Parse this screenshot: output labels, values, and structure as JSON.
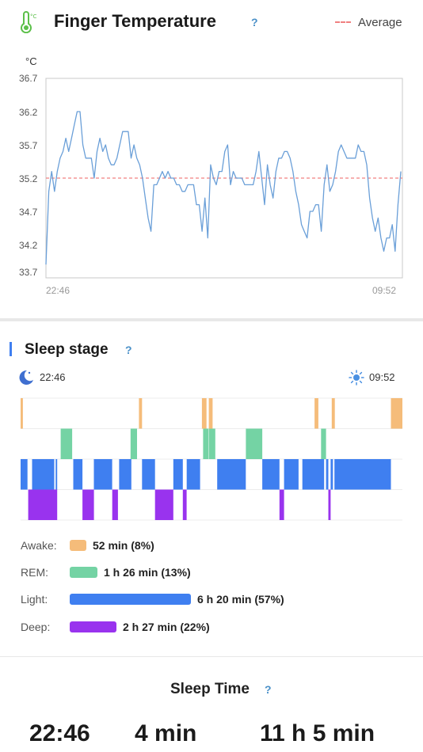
{
  "temperature": {
    "title": "Finger Temperature",
    "help": "?",
    "legend_label": "Average",
    "unit": "°C",
    "y_ticks": [
      "36.7",
      "36.2",
      "35.7",
      "35.2",
      "34.7",
      "34.2",
      "33.7"
    ],
    "start_label": "22:46",
    "end_label": "09:52",
    "colors": {
      "line": "#6a9fd8",
      "average": "#f08080"
    }
  },
  "chart_data": {
    "type": "line",
    "title": "",
    "xlabel": "",
    "ylabel": "°C",
    "ylim": [
      33.7,
      36.7
    ],
    "average": 35.2,
    "x_range": [
      "22:46",
      "09:52"
    ],
    "series": [
      {
        "values": [
          33.9,
          35.0,
          35.3,
          35.0,
          35.3,
          35.5,
          35.6,
          35.8,
          35.6,
          35.8,
          36.0,
          36.2,
          36.2,
          35.7,
          35.5,
          35.5,
          35.5,
          35.2,
          35.6,
          35.8,
          35.6,
          35.7,
          35.5,
          35.4,
          35.4,
          35.5,
          35.7,
          35.9,
          35.9,
          35.9,
          35.5,
          35.7,
          35.5,
          35.4,
          35.2,
          34.9,
          34.6,
          34.4,
          35.1,
          35.1,
          35.2,
          35.3,
          35.2,
          35.3,
          35.2,
          35.2,
          35.1,
          35.1,
          35.0,
          35.0,
          35.1,
          35.1,
          35.1,
          34.8,
          34.8,
          34.4,
          34.9,
          34.3,
          35.4,
          35.2,
          35.1,
          35.3,
          35.3,
          35.6,
          35.7,
          35.1,
          35.3,
          35.2,
          35.2,
          35.2,
          35.1,
          35.1,
          35.1,
          35.1,
          35.3,
          35.6,
          35.2,
          34.8,
          35.4,
          35.1,
          34.9,
          35.3,
          35.5,
          35.5,
          35.6,
          35.6,
          35.5,
          35.3,
          35.0,
          34.8,
          34.5,
          34.4,
          34.3,
          34.7,
          34.7,
          34.8,
          34.8,
          34.4,
          35.1,
          35.4,
          35.0,
          35.1,
          35.3,
          35.6,
          35.7,
          35.6,
          35.5,
          35.5,
          35.5,
          35.5,
          35.7,
          35.6,
          35.6,
          35.4,
          34.9,
          34.6,
          34.4,
          34.6,
          34.3,
          34.1,
          34.3,
          34.3,
          34.5,
          34.1,
          34.8,
          35.3
        ]
      }
    ]
  },
  "sleep_stage": {
    "title": "Sleep stage",
    "help": "?",
    "start_time": "22:46",
    "end_time": "09:52",
    "colors": {
      "Awake": "#f5bc7a",
      "REM": "#74d3a4",
      "Light": "#3f7ff0",
      "Deep": "#9933ee"
    },
    "rows": [
      "Awake",
      "REM",
      "Light",
      "Deep"
    ],
    "segments": {
      "Awake": [
        [
          0,
          0.006
        ],
        [
          0.31,
          0.318
        ],
        [
          0.475,
          0.487
        ],
        [
          0.493,
          0.503
        ],
        [
          0.77,
          0.78
        ],
        [
          0.815,
          0.823
        ],
        [
          0.97,
          1.0
        ]
      ],
      "REM": [
        [
          0.105,
          0.135
        ],
        [
          0.288,
          0.305
        ],
        [
          0.478,
          0.492
        ],
        [
          0.493,
          0.51
        ],
        [
          0.59,
          0.633
        ],
        [
          0.787,
          0.8
        ]
      ],
      "Light": [
        [
          0,
          0.018
        ],
        [
          0.03,
          0.088
        ],
        [
          0.092,
          0.096
        ],
        [
          0.138,
          0.162
        ],
        [
          0.192,
          0.24
        ],
        [
          0.258,
          0.29
        ],
        [
          0.318,
          0.352
        ],
        [
          0.4,
          0.425
        ],
        [
          0.435,
          0.47
        ],
        [
          0.515,
          0.59
        ],
        [
          0.633,
          0.678
        ],
        [
          0.69,
          0.728
        ],
        [
          0.738,
          0.795
        ],
        [
          0.8,
          0.806
        ],
        [
          0.812,
          0.818
        ],
        [
          0.822,
          0.97
        ]
      ],
      "Deep": [
        [
          0.02,
          0.096
        ],
        [
          0.162,
          0.192
        ],
        [
          0.24,
          0.255
        ],
        [
          0.352,
          0.4
        ],
        [
          0.425,
          0.435
        ],
        [
          0.678,
          0.69
        ],
        [
          0.806,
          0.812
        ]
      ]
    },
    "legend": [
      {
        "label": "Awake:",
        "value": "52 min (8%)",
        "fraction": 0.08
      },
      {
        "label": "REM:",
        "value": "1 h 26 min (13%)",
        "fraction": 0.13
      },
      {
        "label": "Light:",
        "value": "6 h 20 min (57%)",
        "fraction": 0.57
      },
      {
        "label": "Deep:",
        "value": "2 h 27 min (22%)",
        "fraction": 0.22
      }
    ]
  },
  "sleep_time": {
    "title": "Sleep Time",
    "help": "?",
    "values": [
      "22:46",
      "4 min",
      "11 h 5 min"
    ]
  }
}
